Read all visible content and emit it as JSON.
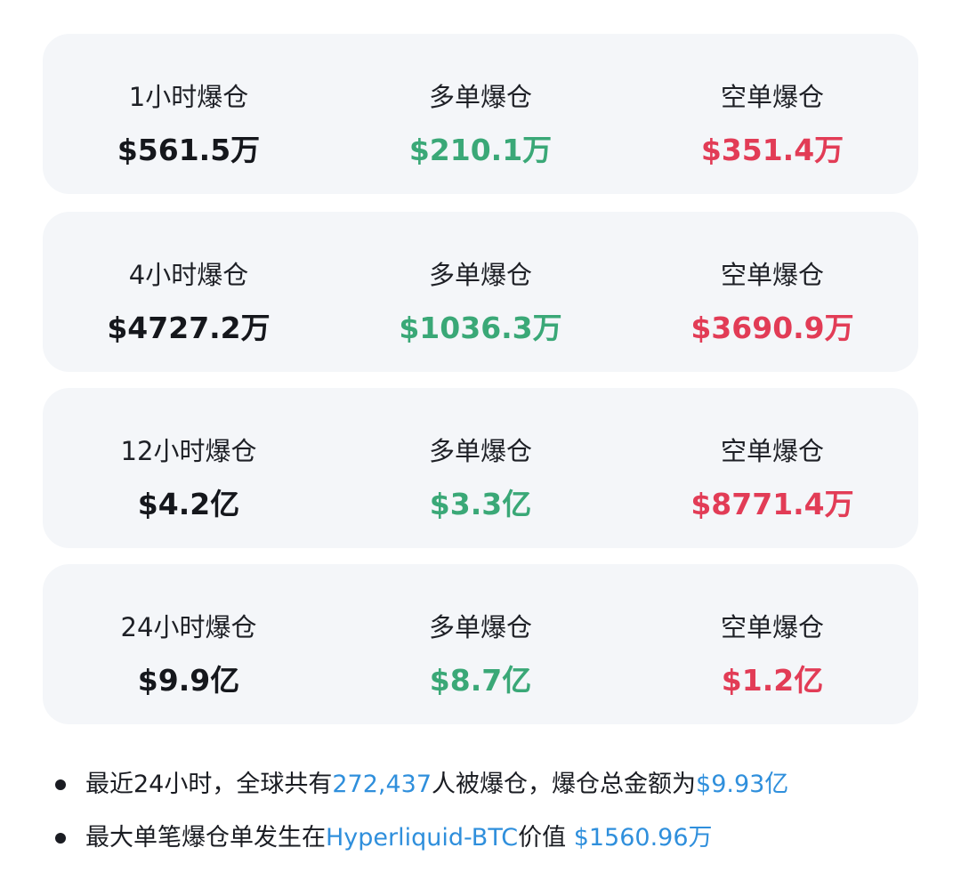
{
  "colors": {
    "total": "#15171c",
    "long": "#3aa877",
    "short": "#e23c56",
    "highlight": "#2f8fdc",
    "card_bg": "#f4f6f9"
  },
  "cards": [
    {
      "total_label": "1小时爆仓",
      "total_value": "$561.5万",
      "long_label": "多单爆仓",
      "long_value": "$210.1万",
      "short_label": "空单爆仓",
      "short_value": "$351.4万"
    },
    {
      "total_label": "4小时爆仓",
      "total_value": "$4727.2万",
      "long_label": "多单爆仓",
      "long_value": "$1036.3万",
      "short_label": "空单爆仓",
      "short_value": "$3690.9万"
    },
    {
      "total_label": "12小时爆仓",
      "total_value": "$4.2亿",
      "long_label": "多单爆仓",
      "long_value": "$3.3亿",
      "short_label": "空单爆仓",
      "short_value": "$8771.4万"
    },
    {
      "total_label": "24小时爆仓",
      "total_value": "$9.9亿",
      "long_label": "多单爆仓",
      "long_value": "$8.7亿",
      "short_label": "空单爆仓",
      "short_value": "$1.2亿"
    }
  ],
  "bullets": [
    {
      "t1": "最近24小时，全球共有",
      "h1": "272,437",
      "t2": "人被爆仓，爆仓总金额为",
      "h2": "$9.93亿"
    },
    {
      "t1": "最大单笔爆仓单发生在",
      "h1": "Hyperliquid-BTC",
      "t2": "价值 ",
      "h2": "$1560.96万"
    }
  ]
}
